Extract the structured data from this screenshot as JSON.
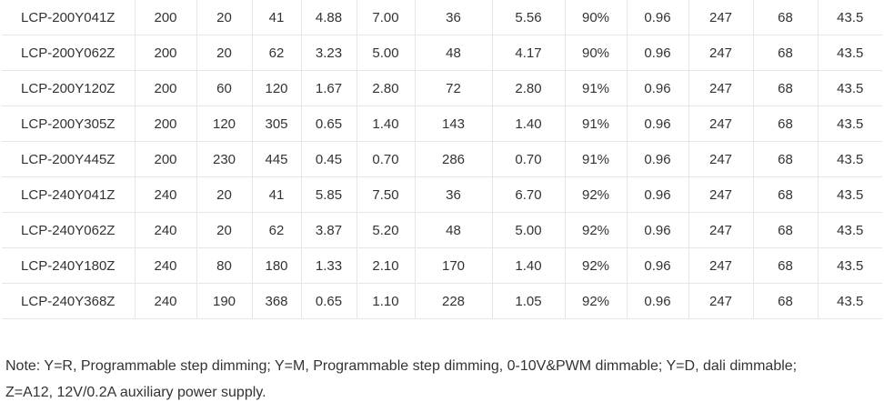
{
  "table": {
    "rows": [
      [
        "LCP-200Y041Z",
        "200",
        "20",
        "41",
        "4.88",
        "7.00",
        "36",
        "5.56",
        "90%",
        "0.96",
        "247",
        "68",
        "43.5"
      ],
      [
        "LCP-200Y062Z",
        "200",
        "20",
        "62",
        "3.23",
        "5.00",
        "48",
        "4.17",
        "90%",
        "0.96",
        "247",
        "68",
        "43.5"
      ],
      [
        "LCP-200Y120Z",
        "200",
        "60",
        "120",
        "1.67",
        "2.80",
        "72",
        "2.80",
        "91%",
        "0.96",
        "247",
        "68",
        "43.5"
      ],
      [
        "LCP-200Y305Z",
        "200",
        "120",
        "305",
        "0.65",
        "1.40",
        "143",
        "1.40",
        "91%",
        "0.96",
        "247",
        "68",
        "43.5"
      ],
      [
        "LCP-200Y445Z",
        "200",
        "230",
        "445",
        "0.45",
        "0.70",
        "286",
        "0.70",
        "91%",
        "0.96",
        "247",
        "68",
        "43.5"
      ],
      [
        "LCP-240Y041Z",
        "240",
        "20",
        "41",
        "5.85",
        "7.50",
        "36",
        "6.70",
        "92%",
        "0.96",
        "247",
        "68",
        "43.5"
      ],
      [
        "LCP-240Y062Z",
        "240",
        "20",
        "62",
        "3.87",
        "5.20",
        "48",
        "5.00",
        "92%",
        "0.96",
        "247",
        "68",
        "43.5"
      ],
      [
        "LCP-240Y180Z",
        "240",
        "80",
        "180",
        "1.33",
        "2.10",
        "170",
        "1.40",
        "92%",
        "0.96",
        "247",
        "68",
        "43.5"
      ],
      [
        "LCP-240Y368Z",
        "240",
        "190",
        "368",
        "0.65",
        "1.10",
        "228",
        "1.05",
        "92%",
        "0.96",
        "247",
        "68",
        "43.5"
      ]
    ]
  },
  "note": {
    "line1": "Note: Y=R, Programmable step dimming; Y=M, Programmable step dimming, 0-10V&PWM dimmable; Y=D, dali dimmable;",
    "line2": "Z=A12, 12V/0.2A auxiliary power supply."
  }
}
